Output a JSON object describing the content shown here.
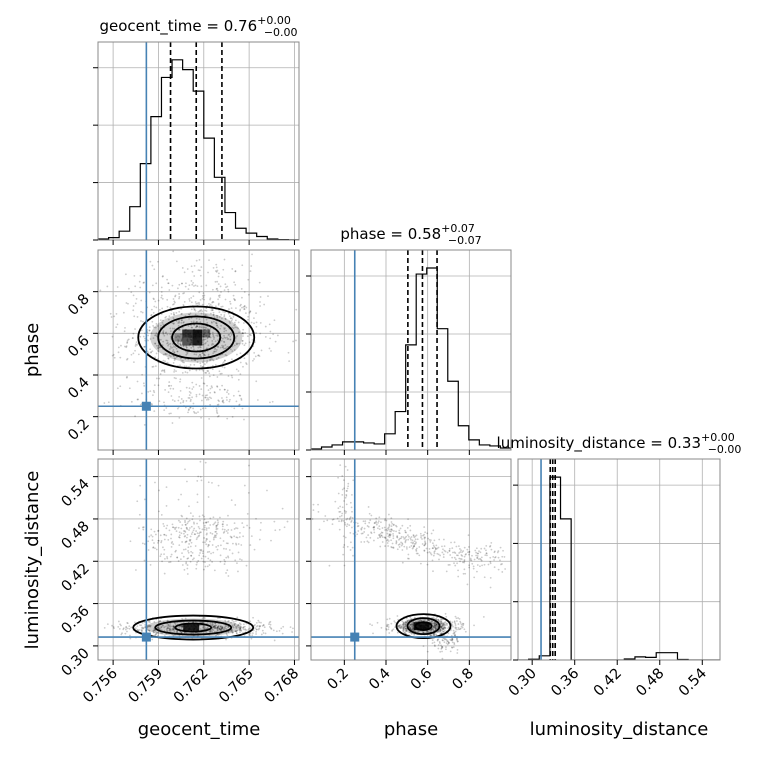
{
  "chart_data": {
    "type": "corner",
    "parameters": [
      {
        "name": "geocent_time",
        "axis_label": "geocent_time",
        "title": "geocent_time = 0.76",
        "title_sup": "+0.00",
        "title_sub": "−0.00",
        "range": [
          0.755,
          0.7683
        ],
        "ticks": [
          "0.756",
          "0.759",
          "0.762",
          "0.765",
          "0.768"
        ],
        "tick_values": [
          0.756,
          0.759,
          0.762,
          0.765,
          0.768
        ],
        "quantiles": [
          0.7598,
          0.7615,
          0.7632
        ],
        "injection": 0.7582,
        "hist": {
          "edges": [
            0.755,
            0.7557,
            0.7564,
            0.7571,
            0.7578,
            0.7585,
            0.7592,
            0.7599,
            0.7606,
            0.7613,
            0.762,
            0.7627,
            0.7634,
            0.7641,
            0.7648,
            0.7655,
            0.7662,
            0.7669,
            0.7676,
            0.7683
          ],
          "values": [
            0.5,
            1.2,
            4.5,
            17,
            39,
            63,
            83,
            92,
            87,
            76,
            52,
            32,
            14,
            6,
            3.5,
            1.8,
            0.5,
            0.2,
            0.1
          ]
        }
      },
      {
        "name": "phase",
        "axis_label": "phase",
        "title": "phase = 0.58",
        "title_sup": "+0.07",
        "title_sub": "−0.07",
        "range": [
          0.04,
          1.0
        ],
        "ticks": [
          "0.2",
          "0.4",
          "0.6",
          "0.8"
        ],
        "tick_values": [
          0.2,
          0.4,
          0.6,
          0.8
        ],
        "quantiles": [
          0.505,
          0.575,
          0.645
        ],
        "injection": 0.25,
        "hist": {
          "edges": [
            0.04,
            0.0905,
            0.141,
            0.1915,
            0.242,
            0.2925,
            0.343,
            0.3935,
            0.444,
            0.4945,
            0.545,
            0.5955,
            0.646,
            0.6965,
            0.747,
            0.7975,
            0.848,
            0.8985,
            0.949,
            1.0
          ],
          "values": [
            0.5,
            1.5,
            2.5,
            4,
            4,
            3.5,
            3,
            8,
            19,
            52,
            87,
            90,
            60,
            34,
            12,
            5,
            2.5,
            2,
            1
          ]
        }
      },
      {
        "name": "luminosity_distance",
        "axis_label": "luminosity_distance",
        "title": "luminosity_distance = 0.33",
        "title_sup": "+0.00",
        "title_sub": "−0.00",
        "range": [
          0.28,
          0.565
        ],
        "ticks": [
          "0.30",
          "0.36",
          "0.42",
          "0.48",
          "0.54"
        ],
        "tick_values": [
          0.3,
          0.36,
          0.42,
          0.48,
          0.54
        ],
        "quantiles": [
          0.3255,
          0.329,
          0.3325
        ],
        "injection": 0.3125,
        "hist": {
          "edges": [
            0.28,
            0.295,
            0.31,
            0.325,
            0.34,
            0.355,
            0.37,
            0.385,
            0.4,
            0.415,
            0.43,
            0.445,
            0.46,
            0.475,
            0.49,
            0.505,
            0.52,
            0.535,
            0.55,
            0.565
          ],
          "values": [
            0,
            1.5,
            8,
            350,
            270,
            0,
            0,
            0,
            0,
            0,
            2,
            6,
            5,
            14,
            14,
            1,
            0,
            0,
            0
          ]
        }
      }
    ],
    "contour_levels": [
      0.39,
      0.86,
      0.99
    ]
  }
}
